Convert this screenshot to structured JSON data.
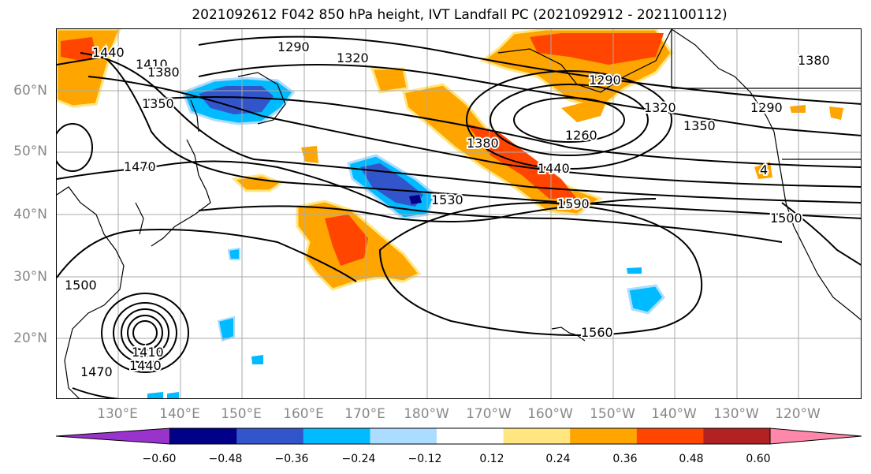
{
  "title": "2021092612 F042 850 hPa height, IVT Landfall PC (2021092912 - 2021100112)",
  "lat_labels": [
    "60°N",
    "50°N",
    "40°N",
    "30°N",
    "20°N"
  ],
  "lon_labels": [
    "130°E",
    "140°E",
    "150°E",
    "160°E",
    "170°E",
    "180°W",
    "170°W",
    "160°W",
    "150°W",
    "140°W",
    "130°W",
    "120°W"
  ],
  "contour_labels": [
    "1440",
    "1410",
    "1380",
    "1350",
    "1290",
    "1320",
    "1290",
    "1320",
    "1350",
    "1260",
    "1380",
    "1440",
    "1380",
    "1290",
    "1470",
    "1530",
    "1590",
    "1500",
    "1500",
    "1410",
    "1440",
    "1470",
    "1560",
    "4"
  ],
  "colorbar": {
    "colors": [
      "#9933cc",
      "#000088",
      "#3355cc",
      "#00bbff",
      "#aaddff",
      "#ffffff",
      "#ffe680",
      "#ffa500",
      "#ff4500",
      "#b22222",
      "#ff88aa"
    ],
    "tick_labels": [
      "−0.60",
      "−0.48",
      "−0.36",
      "−0.24",
      "−0.12",
      "0.12",
      "0.24",
      "0.36",
      "0.48",
      "0.60"
    ]
  }
}
